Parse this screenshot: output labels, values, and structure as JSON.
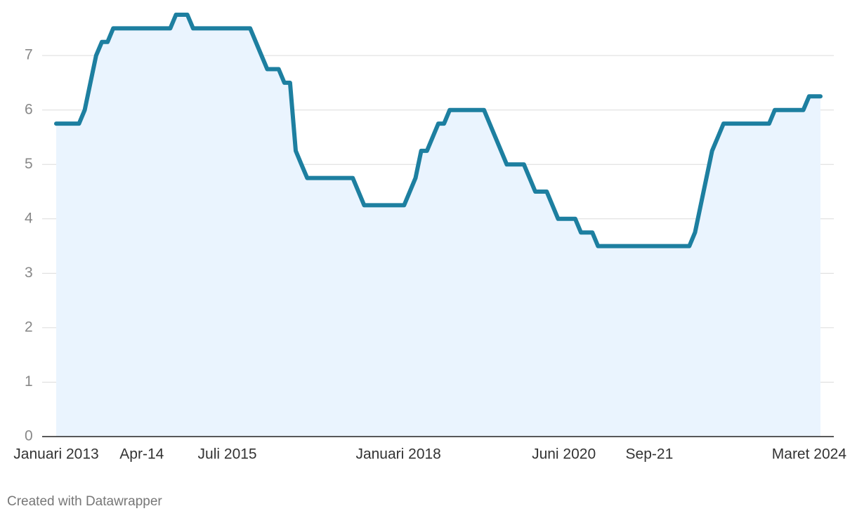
{
  "chart_data": {
    "type": "line",
    "categories": [
      "Januari 2013",
      null,
      null,
      null,
      null,
      null,
      null,
      null,
      null,
      null,
      null,
      null,
      null,
      null,
      null,
      "Apr-14",
      null,
      null,
      null,
      null,
      null,
      null,
      null,
      null,
      null,
      null,
      null,
      null,
      null,
      null,
      "Juli 2015",
      null,
      null,
      null,
      null,
      null,
      null,
      null,
      null,
      null,
      null,
      null,
      null,
      null,
      null,
      null,
      null,
      null,
      null,
      null,
      null,
      null,
      null,
      null,
      null,
      null,
      null,
      null,
      null,
      null,
      "Januari 2018",
      null,
      null,
      null,
      null,
      null,
      null,
      null,
      null,
      null,
      null,
      null,
      null,
      null,
      null,
      null,
      null,
      null,
      null,
      null,
      null,
      null,
      null,
      null,
      null,
      null,
      null,
      null,
      null,
      "Juni 2020",
      null,
      null,
      null,
      null,
      null,
      null,
      null,
      null,
      null,
      null,
      null,
      null,
      null,
      null,
      "Sep-21",
      null,
      null,
      null,
      null,
      null,
      null,
      null,
      null,
      null,
      null,
      null,
      null,
      null,
      null,
      null,
      null,
      null,
      null,
      null,
      null,
      null,
      null,
      null,
      null,
      null,
      null,
      null,
      null,
      null,
      "Maret 2024"
    ],
    "values": [
      5.75,
      5.75,
      5.75,
      5.75,
      5.75,
      6.0,
      6.5,
      7.0,
      7.25,
      7.25,
      7.5,
      7.5,
      7.5,
      7.5,
      7.5,
      7.5,
      7.5,
      7.5,
      7.5,
      7.5,
      7.5,
      7.75,
      7.75,
      7.75,
      7.5,
      7.5,
      7.5,
      7.5,
      7.5,
      7.5,
      7.5,
      7.5,
      7.5,
      7.5,
      7.5,
      7.25,
      7.0,
      6.75,
      6.75,
      6.75,
      6.5,
      6.5,
      5.25,
      5.0,
      4.75,
      4.75,
      4.75,
      4.75,
      4.75,
      4.75,
      4.75,
      4.75,
      4.75,
      4.5,
      4.25,
      4.25,
      4.25,
      4.25,
      4.25,
      4.25,
      4.25,
      4.25,
      4.5,
      4.75,
      5.25,
      5.25,
      5.5,
      5.75,
      5.75,
      6.0,
      6.0,
      6.0,
      6.0,
      6.0,
      6.0,
      6.0,
      5.75,
      5.5,
      5.25,
      5.0,
      5.0,
      5.0,
      5.0,
      4.75,
      4.5,
      4.5,
      4.5,
      4.25,
      4.0,
      4.0,
      4.0,
      4.0,
      3.75,
      3.75,
      3.75,
      3.5,
      3.5,
      3.5,
      3.5,
      3.5,
      3.5,
      3.5,
      3.5,
      3.5,
      3.5,
      3.5,
      3.5,
      3.5,
      3.5,
      3.5,
      3.5,
      3.5,
      3.75,
      4.25,
      4.75,
      5.25,
      5.5,
      5.75,
      5.75,
      5.75,
      5.75,
      5.75,
      5.75,
      5.75,
      5.75,
      5.75,
      6.0,
      6.0,
      6.0,
      6.0,
      6.0,
      6.0,
      6.25,
      6.25,
      6.25
    ],
    "color": "#1d7fa0",
    "area_color": "#eaf4fe",
    "ylim": [
      0,
      7.75
    ],
    "yticks": [
      0,
      1,
      2,
      3,
      4,
      5,
      6,
      7
    ],
    "grid": true,
    "credit": "Created with Datawrapper"
  }
}
